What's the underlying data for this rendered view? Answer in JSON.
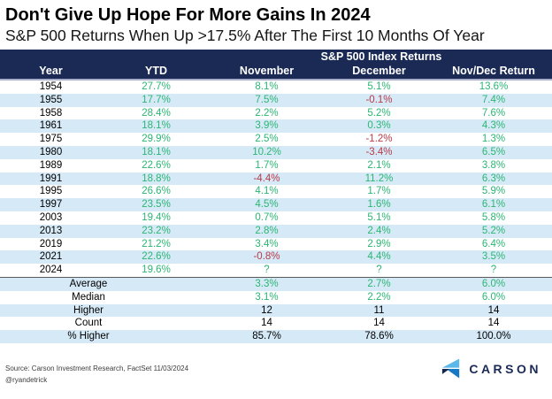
{
  "header": {
    "title": "Don't Give Up Hope For More Gains In 2024",
    "subtitle": "S&P 500 Returns When Up >17.5% After The First 10 Months Of Year"
  },
  "chart_data": {
    "type": "table",
    "title": "Don't Give Up Hope For More Gains In 2024",
    "subtitle": "S&P 500 Returns When Up >17.5% After The First 10 Months Of Year",
    "group_header": "S&P 500 Index Returns",
    "columns": [
      "Year",
      "YTD",
      "November",
      "December",
      "Nov/Dec Return"
    ],
    "rows": [
      [
        "1954",
        "27.7%",
        "8.1%",
        "5.1%",
        "13.6%"
      ],
      [
        "1955",
        "17.7%",
        "7.5%",
        "-0.1%",
        "7.4%"
      ],
      [
        "1958",
        "28.4%",
        "2.2%",
        "5.2%",
        "7.6%"
      ],
      [
        "1961",
        "18.1%",
        "3.9%",
        "0.3%",
        "4.3%"
      ],
      [
        "1975",
        "29.9%",
        "2.5%",
        "-1.2%",
        "1.3%"
      ],
      [
        "1980",
        "18.1%",
        "10.2%",
        "-3.4%",
        "6.5%"
      ],
      [
        "1989",
        "22.6%",
        "1.7%",
        "2.1%",
        "3.8%"
      ],
      [
        "1991",
        "18.8%",
        "-4.4%",
        "11.2%",
        "6.3%"
      ],
      [
        "1995",
        "26.6%",
        "4.1%",
        "1.7%",
        "5.9%"
      ],
      [
        "1997",
        "23.5%",
        "4.5%",
        "1.6%",
        "6.1%"
      ],
      [
        "2003",
        "19.4%",
        "0.7%",
        "5.1%",
        "5.8%"
      ],
      [
        "2013",
        "23.2%",
        "2.8%",
        "2.4%",
        "5.2%"
      ],
      [
        "2019",
        "21.2%",
        "3.4%",
        "2.9%",
        "6.4%"
      ],
      [
        "2021",
        "22.6%",
        "-0.8%",
        "4.4%",
        "3.5%"
      ],
      [
        "2024",
        "19.6%",
        "?",
        "?",
        "?"
      ]
    ],
    "summary_rows": [
      {
        "label": "Average",
        "values": [
          "3.3%",
          "2.7%",
          "6.0%"
        ],
        "value_color": "green"
      },
      {
        "label": "Median",
        "values": [
          "3.1%",
          "2.2%",
          "6.0%"
        ],
        "value_color": "green"
      },
      {
        "label": "Higher",
        "values": [
          "12",
          "11",
          "14"
        ],
        "value_color": "black"
      },
      {
        "label": "Count",
        "values": [
          "14",
          "14",
          "14"
        ],
        "value_color": "black"
      },
      {
        "label": "% Higher",
        "values": [
          "85.7%",
          "78.6%",
          "100.0%"
        ],
        "value_color": "black"
      }
    ]
  },
  "footer": {
    "source": "Source: Carson Investment Research, FactSet 11/03/2024",
    "handle": "@ryandetrick",
    "logo_text": "CARSON"
  },
  "colors": {
    "navy": "#1a2a55",
    "green": "#2bb673",
    "red": "#b93a47",
    "row_alt": "#d6e9f7",
    "divider": "#5a5a5a",
    "logo_light_blue": "#5cb8e8",
    "logo_blue": "#1779c4",
    "logo_navy": "#14254c"
  }
}
